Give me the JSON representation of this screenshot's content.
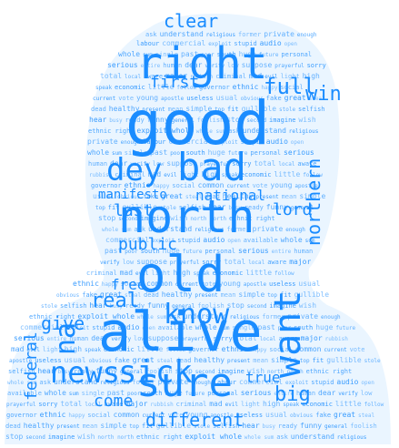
{
  "wordcloud": {
    "accent": "#1a8cff",
    "silhouette": "#d9ecff",
    "big_words": [
      "good",
      "alive",
      "right",
      "north",
      "bad",
      "old",
      "sure",
      "sick",
      "news",
      "want",
      "dey",
      "clear",
      "know",
      "win",
      "national",
      "public",
      "full",
      "first",
      "last",
      "northern",
      "real",
      "give",
      "federal",
      "come",
      "different",
      "true",
      "big",
      "manifesto",
      "na",
      "free",
      "lord"
    ],
    "small_words": [
      "ask",
      "understand",
      "religious",
      "former",
      "private",
      "enough",
      "labour",
      "commercial",
      "exploit",
      "stupid",
      "audio",
      "open",
      "available",
      "whole",
      "sum",
      "single",
      "past",
      "poor",
      "south",
      "huge",
      "future",
      "personal",
      "serious",
      "entire",
      "human",
      "dear",
      "verify",
      "low",
      "suppose",
      "prayerful",
      "sorry",
      "total",
      "local",
      "aware",
      "major",
      "rubbish",
      "criminal",
      "mad",
      "evil",
      "light",
      "high",
      "speak",
      "economic",
      "little",
      "follow",
      "governor",
      "ethnic",
      "happy",
      "social",
      "common",
      "current",
      "vote",
      "young",
      "apostle",
      "useless",
      "usual",
      "obvious",
      "fake",
      "great",
      "steal",
      "dead",
      "healthy",
      "present",
      "mean",
      "simple",
      "top",
      "fit",
      "gullible",
      "stole",
      "selfish",
      "hear",
      "busy",
      "ready",
      "funny",
      "general",
      "foolish",
      "stop",
      "second",
      "imagine",
      "wish",
      "north north",
      "ethnic right",
      "exploit whole",
      "whole sum"
    ]
  }
}
